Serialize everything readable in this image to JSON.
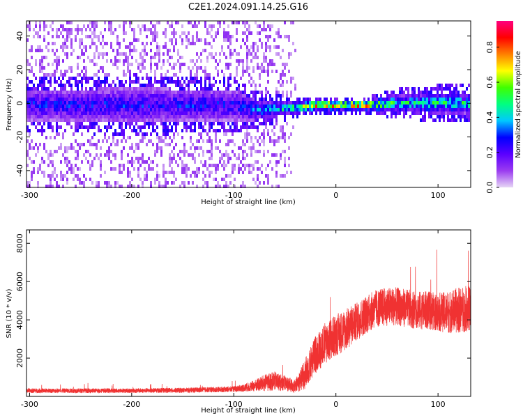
{
  "title": "C2E1.2024.091.14.25.G16",
  "chart_data": [
    {
      "type": "heatmap",
      "title": "",
      "xlabel": "Height of straight line (km)",
      "ylabel": "Frequency (Hz)",
      "xlim": [
        -303,
        132
      ],
      "ylim": [
        -50,
        49
      ],
      "x_ticks": [
        -300,
        -200,
        -100,
        0,
        100
      ],
      "y_ticks": [
        -40,
        -20,
        0,
        20,
        40
      ],
      "colorbar": {
        "label": "Normalized spectral amplitude",
        "range": [
          0.0,
          0.95
        ],
        "ticks": [
          0.0,
          0.2,
          0.4,
          0.6,
          0.8
        ],
        "colormap": [
          "#e6d6f5",
          "#9b3cf0",
          "#5a00ff",
          "#0000ff",
          "#00c8ff",
          "#00ff80",
          "#40ff00",
          "#ffff00",
          "#ff8000",
          "#ff0000",
          "#ff0080"
        ]
      },
      "ridge": [
        {
          "x": -300,
          "center": 0,
          "halfwidth": 9,
          "peak": 0.3
        },
        {
          "x": -200,
          "center": 0,
          "halfwidth": 10,
          "peak": 0.3
        },
        {
          "x": -100,
          "center": 0,
          "halfwidth": 9,
          "peak": 0.3
        },
        {
          "x": -80,
          "center": -3,
          "halfwidth": 6,
          "peak": 0.4
        },
        {
          "x": -50,
          "center": -2,
          "halfwidth": 4,
          "peak": 0.5
        },
        {
          "x": -20,
          "center": 0,
          "halfwidth": 3,
          "peak": 0.85
        },
        {
          "x": 0,
          "center": 0,
          "halfwidth": 3,
          "peak": 0.9
        },
        {
          "x": 30,
          "center": 0,
          "halfwidth": 3,
          "peak": 0.85
        },
        {
          "x": 60,
          "center": 1,
          "halfwidth": 5,
          "peak": 0.5
        },
        {
          "x": 100,
          "center": 1,
          "halfwidth": 6,
          "peak": 0.5
        },
        {
          "x": 130,
          "center": 1,
          "halfwidth": 6,
          "peak": 0.5
        }
      ]
    },
    {
      "type": "line",
      "title": "",
      "xlabel": "Height of straight line (km)",
      "ylabel": "SNR (10 * v/v)",
      "xlim": [
        -303,
        132
      ],
      "ylim": [
        0,
        8700
      ],
      "x_ticks": [
        -300,
        -200,
        -100,
        0,
        100
      ],
      "y_ticks": [
        2000,
        4000,
        6000,
        8000
      ],
      "color": "#f03232",
      "series": [
        {
          "x": [
            -303,
            -250,
            -200,
            -150,
            -100,
            -90,
            -80,
            -70,
            -60,
            -50,
            -40,
            -30,
            -20,
            -10,
            0,
            10,
            20,
            30,
            40,
            50,
            60,
            70,
            80,
            90,
            100,
            110,
            120,
            130
          ],
          "y": [
            300,
            300,
            300,
            320,
            380,
            450,
            550,
            700,
            800,
            700,
            500,
            1200,
            2200,
            2800,
            3200,
            3500,
            3900,
            4300,
            4600,
            4700,
            4700,
            4600,
            4500,
            4500,
            4400,
            4400,
            4500,
            4600
          ],
          "spread": [
            120,
            120,
            120,
            130,
            150,
            200,
            300,
            450,
            500,
            400,
            350,
            800,
            1000,
            1100,
            1100,
            1100,
            1000,
            1000,
            1000,
            1000,
            1000,
            1000,
            1000,
            1000,
            1000,
            1100,
            1200,
            1200
          ]
        }
      ]
    }
  ]
}
